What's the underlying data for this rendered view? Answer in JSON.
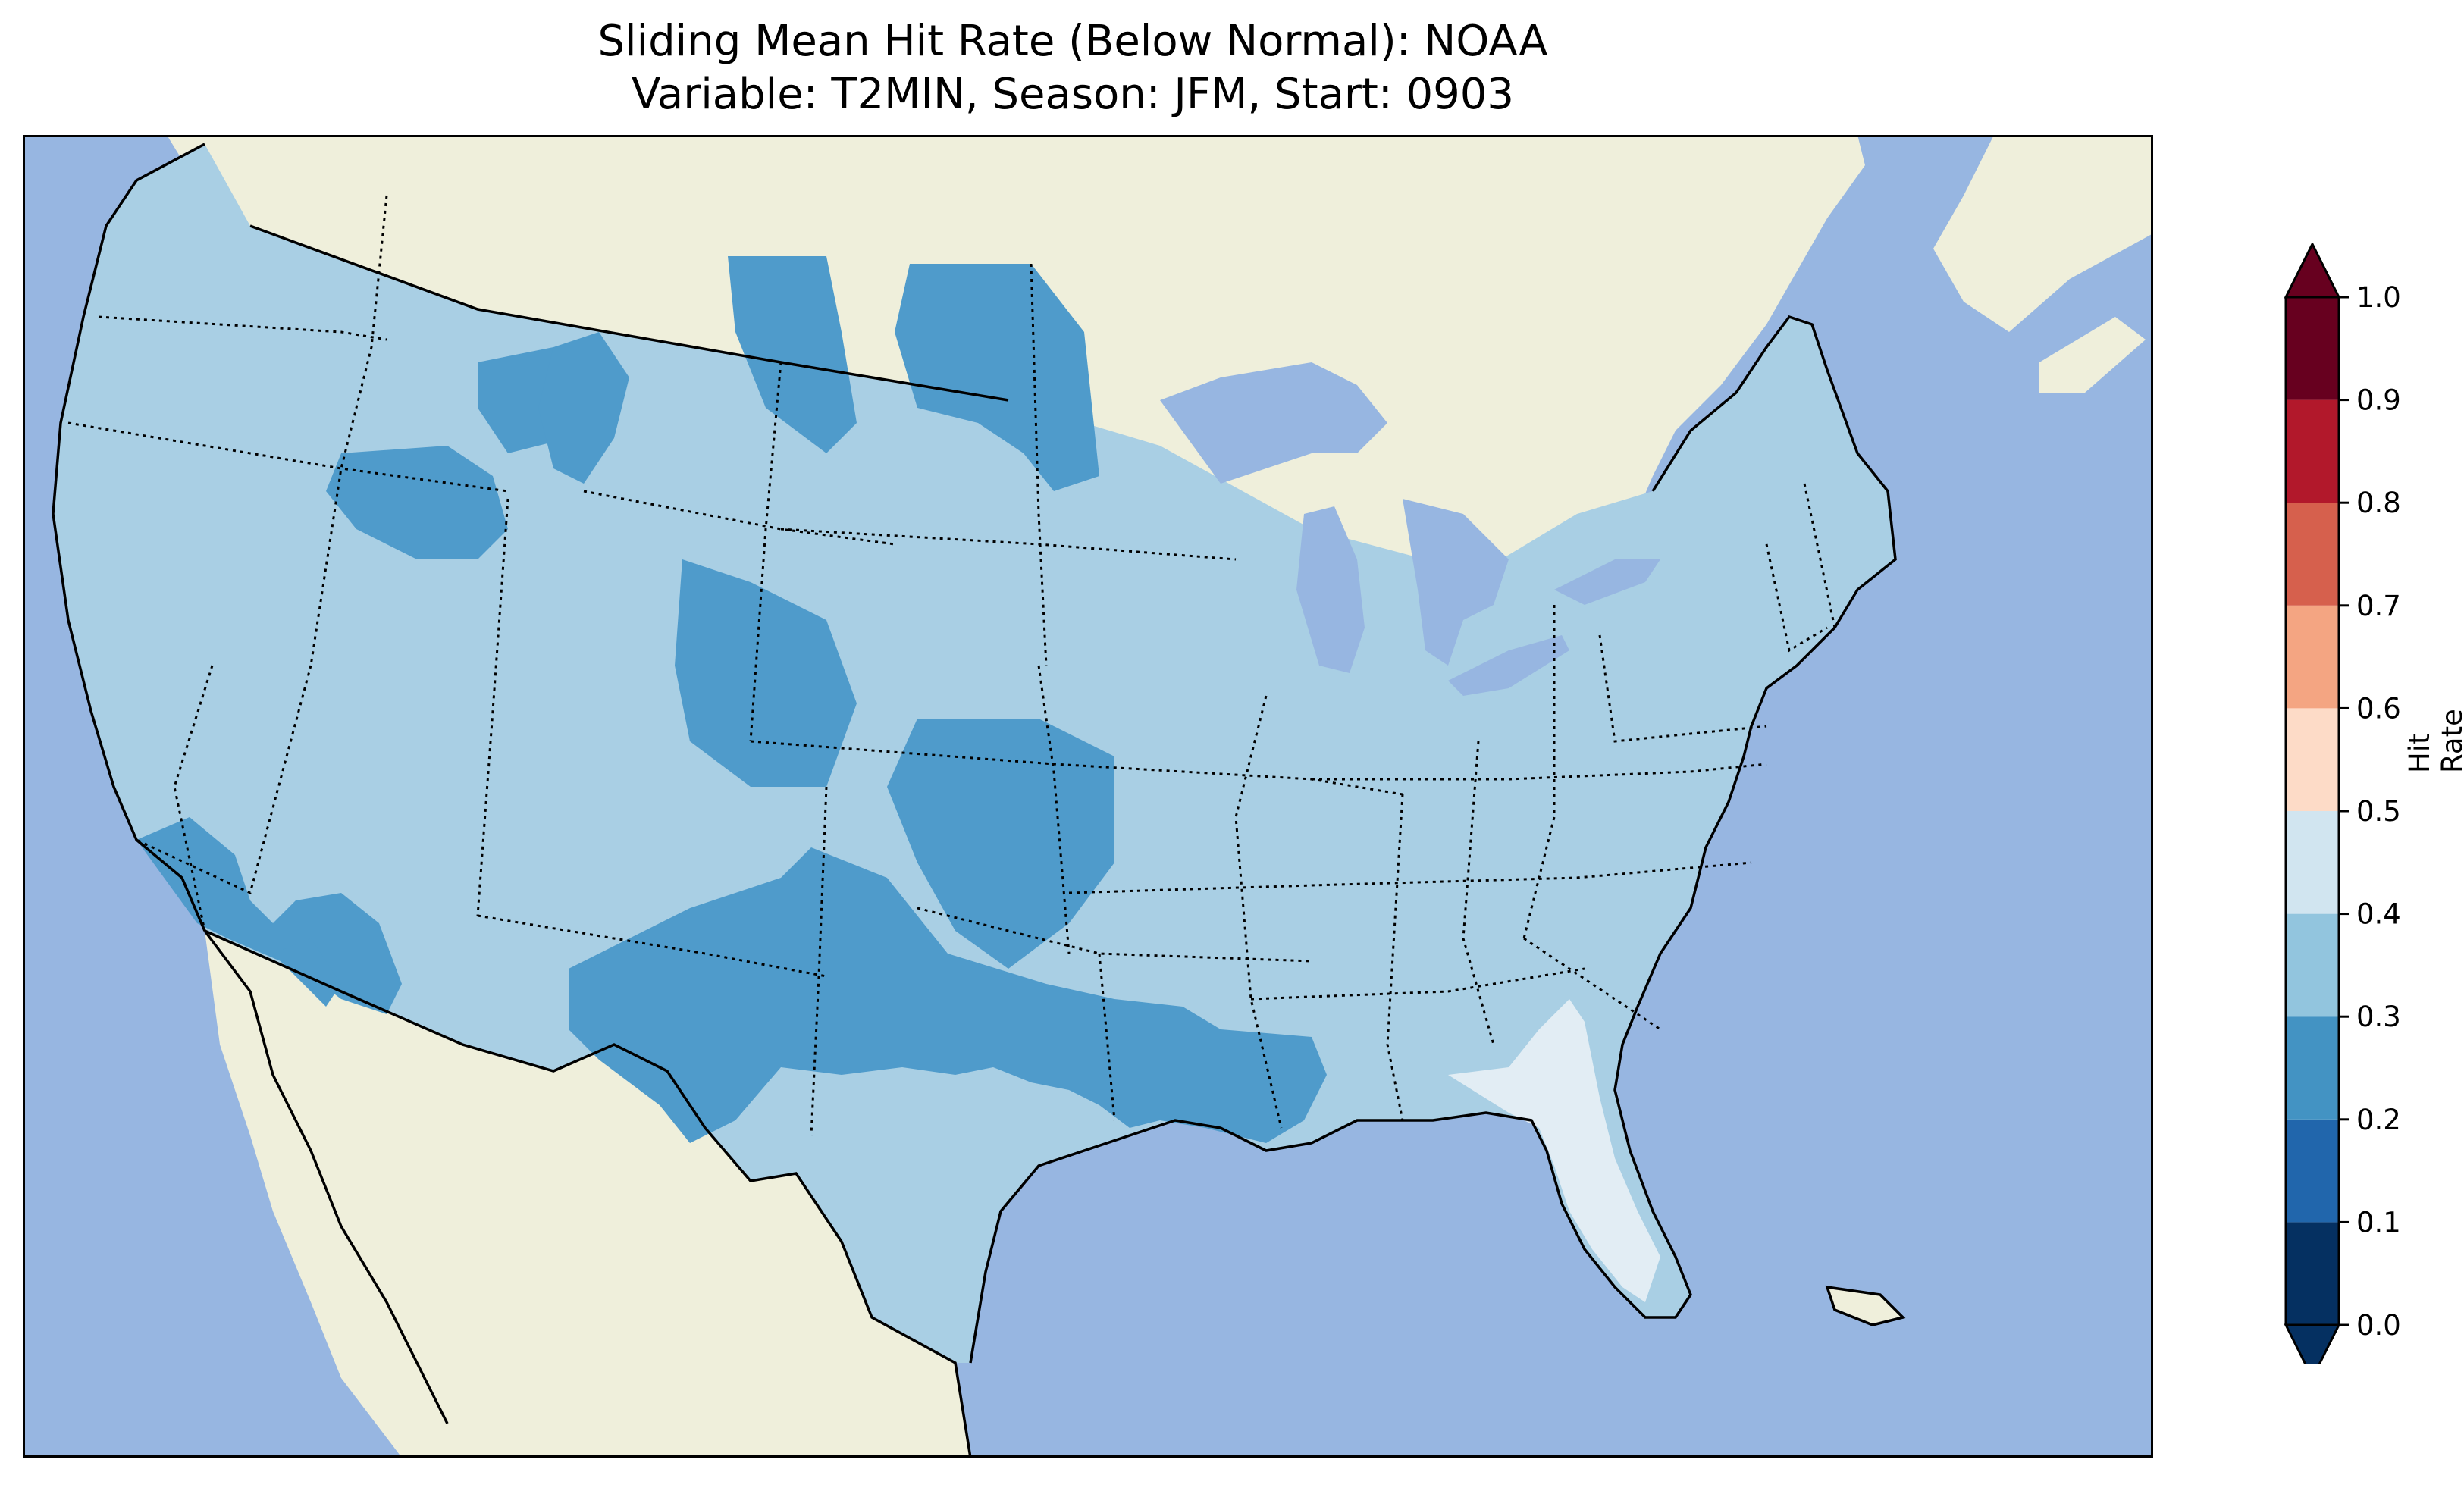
{
  "title": {
    "line1": "Sliding Mean Hit Rate (Below Normal): NOAA",
    "line2": "Variable: T2MIN, Season: JFM, Start: 0903"
  },
  "colors": {
    "ocean": "#97b6e1",
    "land": "#efefdb",
    "hit_0_0": "#053061",
    "hit_0_1": "#2166ac",
    "hit_0_2": "#4393c3",
    "hit_0_3": "#92c5de",
    "hit_0_4": "#d1e5f0",
    "hit_0_5": "#fddbc7",
    "hit_0_6": "#f4a582",
    "hit_0_7": "#d6604d",
    "hit_0_8": "#b2182b",
    "hit_0_9": "#67001f",
    "shown_mid": "#a9cfe4",
    "shown_low": "#4f9bcb",
    "shown_high": "#e2edf4"
  },
  "colorbar": {
    "label": "Hit Rate",
    "ticks": [
      "0.0",
      "0.1",
      "0.2",
      "0.3",
      "0.4",
      "0.5",
      "0.6",
      "0.7",
      "0.8",
      "0.9",
      "1.0"
    ],
    "extend": "both"
  },
  "map_data": {
    "projection": "Lambert Conformal (CONUS)",
    "dominant_range": "0.3–0.4",
    "lower_regions_0_2_to_0_3": [
      "Northern Rockies (Idaho/Montana/Wyoming)",
      "Colorado",
      "Kansas/Oklahoma",
      "Southern Plains (Texas/New Mexico)",
      "Louisiana/Arkansas",
      "Arizona/Southern California",
      "Northern Plains (Montana/North Dakota)"
    ],
    "higher_regions_0_4_to_0_5": [
      "Florida peninsula",
      "Southeast Georgia coast"
    ]
  }
}
